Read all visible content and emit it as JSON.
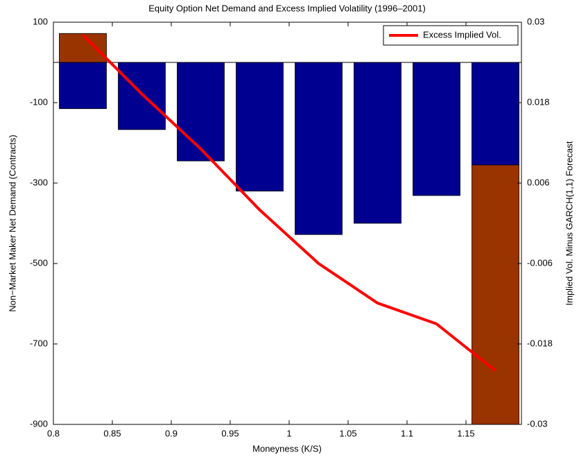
{
  "chart_data": {
    "type": "bar",
    "title": "Equity Option Net Demand and Excess Implied Volatility (1996–2001)",
    "x_label": "Moneyness (K/S)",
    "y_label": "Non−Market Maker Net Demand (Contracts)",
    "y2_label": "Implied Vol. Minus GARCH(1,1) Forecast",
    "x": [
      0.825,
      0.875,
      0.925,
      0.975,
      1.025,
      1.075,
      1.125,
      1.175
    ],
    "bar_width": 0.04,
    "series": [
      {
        "type": "bar",
        "color": "#993300",
        "values": [
          72,
          null,
          null,
          null,
          null,
          null,
          null,
          -900
        ]
      },
      {
        "type": "bar",
        "color": "#000090",
        "values": [
          -115,
          -167,
          -245,
          -320,
          -428,
          -400,
          -331,
          -255
        ]
      },
      {
        "type": "line",
        "name": "Excess Implied Vol.",
        "color": "#ff0000",
        "axis": "y2",
        "values": [
          0.0281,
          0.0193,
          0.0111,
          0.002,
          -0.006,
          -0.0119,
          -0.015,
          -0.022
        ]
      }
    ],
    "xlim": [
      0.8,
      1.2
    ],
    "xticks": [
      0.8,
      0.85,
      0.9,
      0.95,
      1,
      1.05,
      1.1,
      1.15
    ],
    "ylim": [
      -900,
      100
    ],
    "yticks": [
      100,
      -100,
      -300,
      -500,
      -700,
      -900
    ],
    "y2lim": [
      -0.03,
      0.03
    ],
    "y2ticks": [
      0.03,
      0.018,
      0.006,
      -0.006,
      -0.018,
      -0.03
    ],
    "legend": "top-right"
  }
}
